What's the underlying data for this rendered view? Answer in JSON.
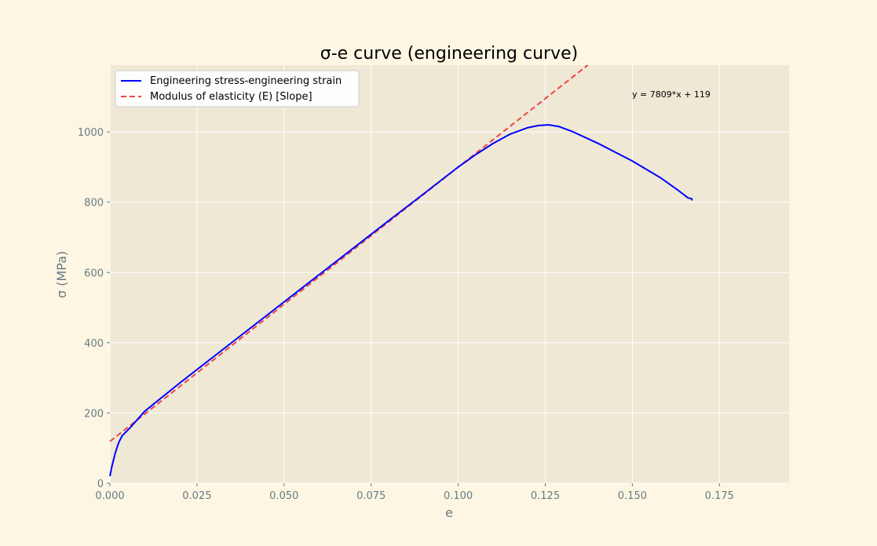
{
  "chart_data": {
    "type": "line",
    "title": "σ-e curve (engineering curve)",
    "xlabel": "e",
    "ylabel": "σ (MPa)",
    "xlim": [
      0,
      0.195
    ],
    "ylim": [
      0,
      1190
    ],
    "xticks": [
      0.0,
      0.025,
      0.05,
      0.075,
      0.1,
      0.125,
      0.15,
      0.175
    ],
    "xtick_labels": [
      "0.000",
      "0.025",
      "0.050",
      "0.075",
      "0.100",
      "0.125",
      "0.150",
      "0.175"
    ],
    "yticks": [
      0,
      200,
      400,
      600,
      800,
      1000
    ],
    "ytick_labels": [
      "0",
      "200",
      "400",
      "600",
      "800",
      "1000"
    ],
    "grid": true,
    "legend_position": "top-left",
    "annotation": "y = 7809*x + 119",
    "series": [
      {
        "name": "Engineering stress-engineering strain",
        "color": "#0000ff",
        "style": "solid",
        "x": [
          0.0,
          0.0005,
          0.0015,
          0.0025,
          0.0035,
          0.006,
          0.01,
          0.02,
          0.03,
          0.04,
          0.05,
          0.06,
          0.07,
          0.08,
          0.09,
          0.1,
          0.105,
          0.11,
          0.115,
          0.12,
          0.123,
          0.126,
          0.129,
          0.133,
          0.14,
          0.15,
          0.158,
          0.163,
          0.166,
          0.167,
          0.1672
        ],
        "y": [
          20,
          45,
          85,
          115,
          135,
          160,
          205,
          285,
          362,
          439,
          516,
          593,
          670,
          747,
          823,
          900,
          935,
          967,
          994,
          1012,
          1018,
          1020,
          1015,
          1000,
          968,
          917,
          870,
          835,
          812,
          810,
          805
        ]
      },
      {
        "name": "Modulus of elasticity (E) [Slope]",
        "color": "#ee4444",
        "style": "dashed",
        "slope": 7809,
        "intercept": 119,
        "x": [
          0.0,
          0.1372
        ],
        "y": [
          119,
          1190
        ]
      }
    ]
  }
}
